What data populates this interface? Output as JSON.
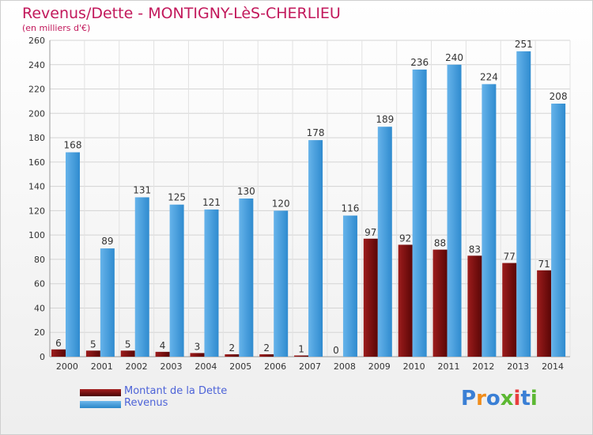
{
  "header": {
    "title": "Revenus/Dette - MONTIGNY-LèS-CHERLIEU",
    "subtitle": "(en milliers d'€)"
  },
  "legend": {
    "debt_label": "Montant de la Dette",
    "revenue_label": "Revenus"
  },
  "logo": {
    "text": "Proxiti",
    "letters": [
      "P",
      "r",
      "o",
      "x",
      "i",
      "t",
      "i"
    ],
    "colors": [
      "#3a7fd5",
      "#f08c1a",
      "#3a7fd5",
      "#5cb832",
      "#e83e3e",
      "#3a7fd5",
      "#5cb832"
    ]
  },
  "colors": {
    "debt": "#7a0a0a",
    "revenue": "#3d9ad8",
    "title": "#c2185b",
    "legend_text": "#4d63d8"
  },
  "chart_data": {
    "type": "bar",
    "title": "Revenus/Dette - MONTIGNY-LèS-CHERLIEU",
    "subtitle": "(en milliers d'€)",
    "xlabel": "",
    "ylabel": "",
    "categories": [
      "2000",
      "2001",
      "2002",
      "2003",
      "2004",
      "2005",
      "2006",
      "2007",
      "2008",
      "2009",
      "2010",
      "2011",
      "2012",
      "2013",
      "2014"
    ],
    "series": [
      {
        "name": "Montant de la Dette",
        "values": [
          6,
          5,
          5,
          4,
          3,
          2,
          2,
          1,
          0,
          97,
          92,
          88,
          83,
          77,
          71
        ]
      },
      {
        "name": "Revenus",
        "values": [
          168,
          89,
          131,
          125,
          121,
          130,
          120,
          178,
          116,
          189,
          236,
          240,
          224,
          251,
          208
        ]
      }
    ],
    "ylim": [
      0,
      260
    ],
    "yticks": [
      0,
      20,
      40,
      60,
      80,
      100,
      120,
      140,
      160,
      180,
      200,
      220,
      240,
      260
    ],
    "grid": true,
    "legend_position": "bottom-left"
  }
}
